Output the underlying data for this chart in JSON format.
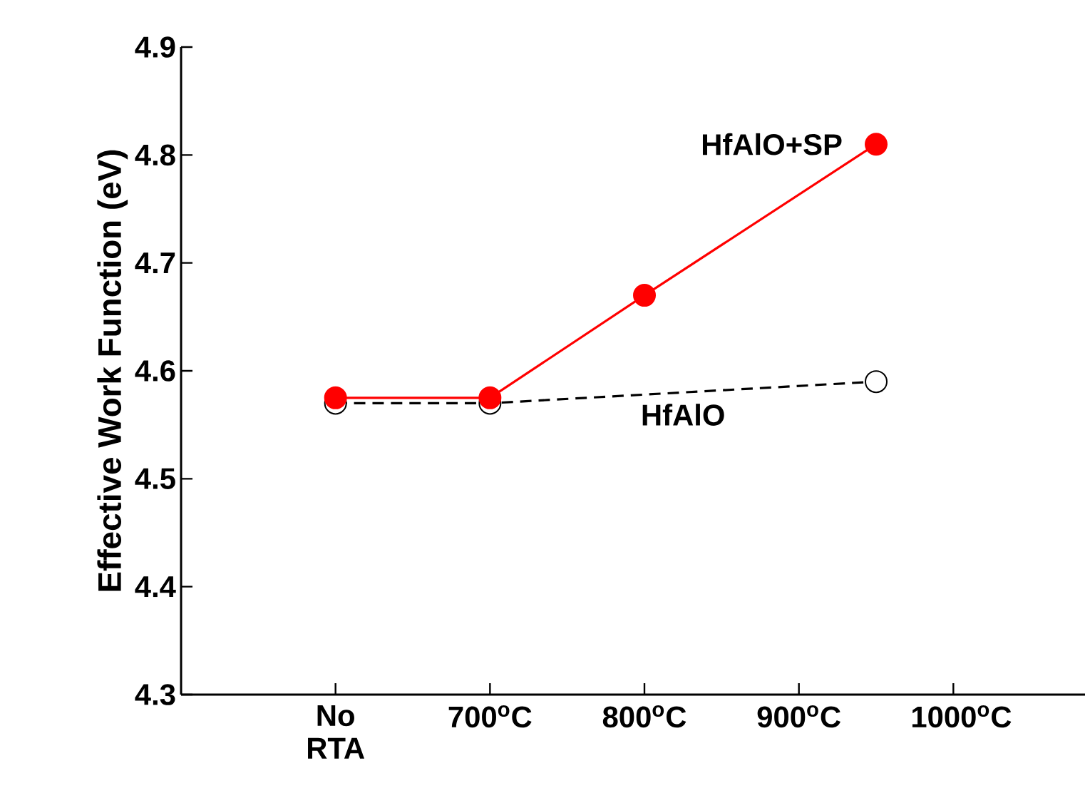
{
  "chart_data": {
    "type": "line",
    "ylabel": "Effective Work Function (eV)",
    "xlim": [
      500,
      1100
    ],
    "ylim": [
      4.3,
      4.9
    ],
    "xticks": [
      {
        "value": 600,
        "label": "No RTA"
      },
      {
        "value": 700,
        "label": "700$^{o}$C"
      },
      {
        "value": 800,
        "label": "800$^{o}$C"
      },
      {
        "value": 900,
        "label": "900$^{o}$C"
      },
      {
        "value": 1000,
        "label": "1000$^{o}$C"
      }
    ],
    "yticks": [
      4.3,
      4.4,
      4.5,
      4.6,
      4.7,
      4.8,
      4.9
    ],
    "legend": false,
    "grid": false,
    "series": [
      {
        "name": "HfAlO",
        "color": "#000000",
        "x": [
          600,
          700,
          950
        ],
        "values": [
          4.57,
          4.57,
          4.59
        ],
        "line_style": "dashed",
        "marker": "circle"
      },
      {
        "name": "HfAlO+SP",
        "color": "#ff0000",
        "x": [
          600,
          700,
          800,
          950
        ],
        "values": [
          4.575,
          4.575,
          4.67,
          4.81
        ],
        "line_style": "solid",
        "marker": "circle"
      }
    ]
  }
}
